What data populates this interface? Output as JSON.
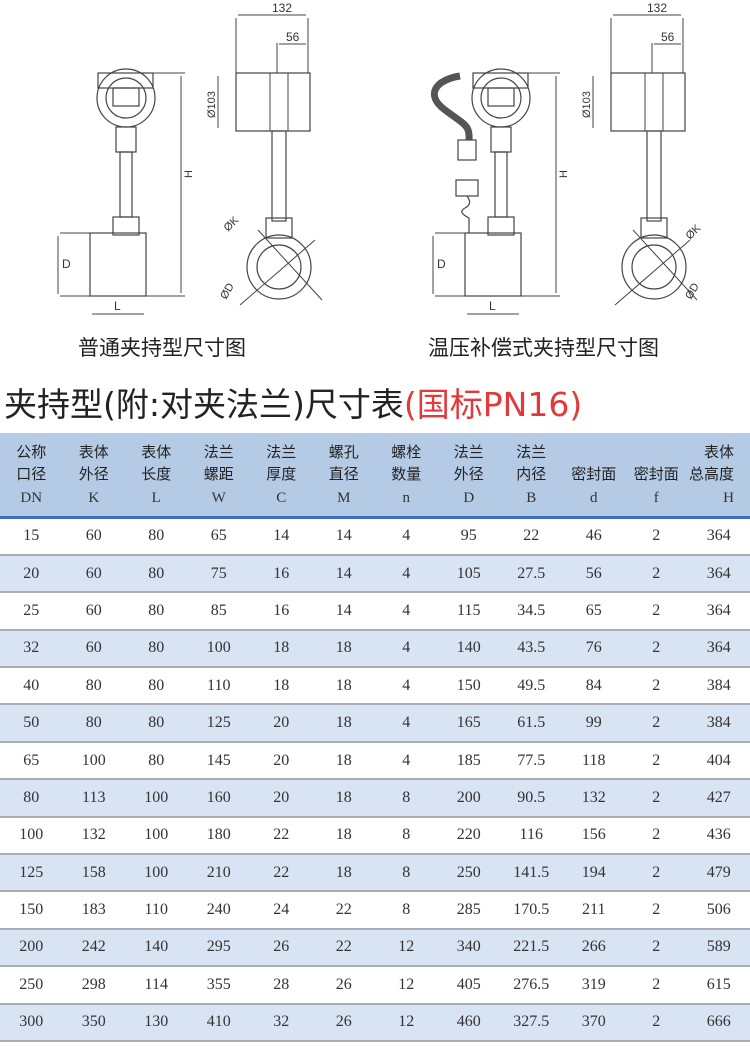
{
  "drawings": [
    {
      "caption": "普通夹持型尺寸图",
      "dim_width": "132",
      "dim_offset": "56",
      "dim_head": "Ø103",
      "dim_height": "H",
      "dim_pipe": "D",
      "dim_length": "L",
      "dim_k": "ØK",
      "dim_d": "ØD"
    },
    {
      "caption": "温压补偿式夹持型尺寸图",
      "dim_width": "132",
      "dim_offset": "56",
      "dim_head": "Ø103",
      "dim_height": "H",
      "dim_pipe": "D",
      "dim_length": "L",
      "dim_k": "ØK",
      "dim_d": "ØD"
    }
  ],
  "title": {
    "main": "夹持型(附:对夹法兰)尺寸表",
    "standard": "(国标PN16)",
    "accent_color": "#e23a3a"
  },
  "table": {
    "headers": [
      {
        "cn": [
          "公称",
          "口径"
        ],
        "en": "DN"
      },
      {
        "cn": [
          "表体",
          "外径"
        ],
        "en": "K"
      },
      {
        "cn": [
          "表体",
          "长度"
        ],
        "en": "L"
      },
      {
        "cn": [
          "法兰",
          "螺距"
        ],
        "en": "W"
      },
      {
        "cn": [
          "法兰",
          "厚度"
        ],
        "en": "C"
      },
      {
        "cn": [
          "螺孔",
          "直径"
        ],
        "en": "M"
      },
      {
        "cn": [
          "螺栓",
          "数量"
        ],
        "en": "n"
      },
      {
        "cn": [
          "法兰",
          "外径"
        ],
        "en": "D"
      },
      {
        "cn": [
          "法兰",
          "内径"
        ],
        "en": "B"
      },
      {
        "cn": [
          "",
          "密封面"
        ],
        "en": "d"
      },
      {
        "cn": [
          "",
          "密封面"
        ],
        "en": "f"
      },
      {
        "cn": [
          "表体",
          "总高度"
        ],
        "en": "H"
      }
    ],
    "rows": [
      [
        "15",
        "60",
        "80",
        "65",
        "14",
        "14",
        "4",
        "95",
        "22",
        "46",
        "2",
        "364"
      ],
      [
        "20",
        "60",
        "80",
        "75",
        "16",
        "14",
        "4",
        "105",
        "27.5",
        "56",
        "2",
        "364"
      ],
      [
        "25",
        "60",
        "80",
        "85",
        "16",
        "14",
        "4",
        "115",
        "34.5",
        "65",
        "2",
        "364"
      ],
      [
        "32",
        "60",
        "80",
        "100",
        "18",
        "18",
        "4",
        "140",
        "43.5",
        "76",
        "2",
        "364"
      ],
      [
        "40",
        "80",
        "80",
        "110",
        "18",
        "18",
        "4",
        "150",
        "49.5",
        "84",
        "2",
        "384"
      ],
      [
        "50",
        "80",
        "80",
        "125",
        "20",
        "18",
        "4",
        "165",
        "61.5",
        "99",
        "2",
        "384"
      ],
      [
        "65",
        "100",
        "80",
        "145",
        "20",
        "18",
        "4",
        "185",
        "77.5",
        "118",
        "2",
        "404"
      ],
      [
        "80",
        "113",
        "100",
        "160",
        "20",
        "18",
        "8",
        "200",
        "90.5",
        "132",
        "2",
        "427"
      ],
      [
        "100",
        "132",
        "100",
        "180",
        "22",
        "18",
        "8",
        "220",
        "116",
        "156",
        "2",
        "436"
      ],
      [
        "125",
        "158",
        "100",
        "210",
        "22",
        "18",
        "8",
        "250",
        "141.5",
        "194",
        "2",
        "479"
      ],
      [
        "150",
        "183",
        "110",
        "240",
        "24",
        "22",
        "8",
        "285",
        "170.5",
        "211",
        "2",
        "506"
      ],
      [
        "200",
        "242",
        "140",
        "295",
        "26",
        "22",
        "12",
        "340",
        "221.5",
        "266",
        "2",
        "589"
      ],
      [
        "250",
        "298",
        "114",
        "355",
        "28",
        "26",
        "12",
        "405",
        "276.5",
        "319",
        "2",
        "615"
      ],
      [
        "300",
        "350",
        "130",
        "410",
        "32",
        "26",
        "12",
        "460",
        "327.5",
        "370",
        "2",
        "666"
      ]
    ]
  }
}
